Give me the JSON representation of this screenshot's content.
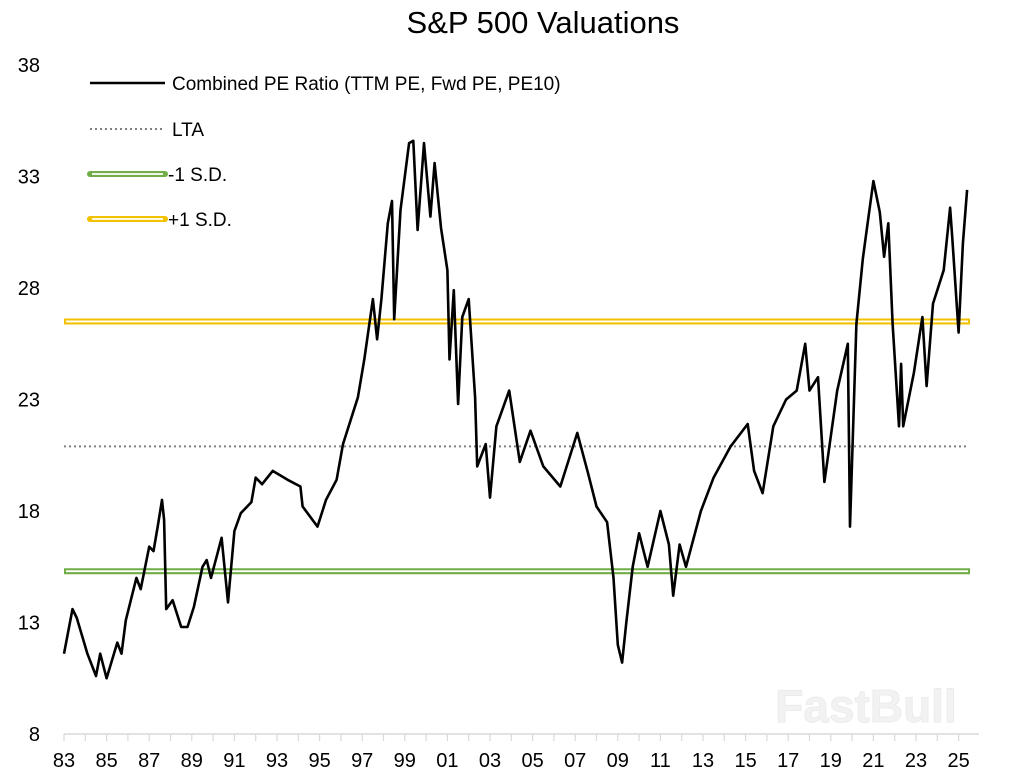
{
  "chart_data": {
    "type": "line",
    "title": "S&P 500 Valuations",
    "xlabel": "",
    "ylabel": "",
    "ylim": [
      8,
      38
    ],
    "xlim": [
      1983,
      2025.9
    ],
    "yticks": [
      "38",
      "33",
      "28",
      "23",
      "18",
      "13",
      "8"
    ],
    "xticks": [
      "83",
      "85",
      "87",
      "89",
      "91",
      "93",
      "95",
      "97",
      "99",
      "01",
      "03",
      "05",
      "07",
      "09",
      "11",
      "13",
      "15",
      "17",
      "19",
      "21",
      "23",
      "25"
    ],
    "grid": false,
    "legend_position": "top-left",
    "legend": [
      {
        "label": "Combined PE Ratio (TTM PE, Fwd PE, PE10)",
        "style": "solid",
        "color": "#000000"
      },
      {
        "label": "LTA",
        "style": "dotted",
        "color": "#808080"
      },
      {
        "label": "-1 S.D.",
        "style": "double",
        "color": "#70ad47"
      },
      {
        "label": "+1 S.D.",
        "style": "double",
        "color": "#f2c200"
      }
    ],
    "reference_lines": {
      "LTA": 20.9,
      "minus_1_sd": 15.3,
      "plus_1_sd": 26.5
    },
    "series": [
      {
        "name": "Combined PE Ratio (TTM PE, Fwd PE, PE10)",
        "points": [
          [
            1983.0,
            11.6
          ],
          [
            1983.4,
            13.6
          ],
          [
            1983.6,
            13.2
          ],
          [
            1984.1,
            11.6
          ],
          [
            1984.5,
            10.6
          ],
          [
            1984.7,
            11.6
          ],
          [
            1985.0,
            10.5
          ],
          [
            1985.5,
            12.1
          ],
          [
            1985.7,
            11.6
          ],
          [
            1985.9,
            13.1
          ],
          [
            1986.4,
            15.0
          ],
          [
            1986.6,
            14.5
          ],
          [
            1987.0,
            16.4
          ],
          [
            1987.2,
            16.2
          ],
          [
            1987.4,
            17.3
          ],
          [
            1987.6,
            18.5
          ],
          [
            1987.7,
            17.6
          ],
          [
            1987.8,
            13.6
          ],
          [
            1988.1,
            14.0
          ],
          [
            1988.5,
            12.8
          ],
          [
            1988.8,
            12.8
          ],
          [
            1989.1,
            13.7
          ],
          [
            1989.5,
            15.5
          ],
          [
            1989.7,
            15.8
          ],
          [
            1989.9,
            15.0
          ],
          [
            1990.4,
            16.8
          ],
          [
            1990.7,
            13.9
          ],
          [
            1991.0,
            17.1
          ],
          [
            1991.3,
            17.9
          ],
          [
            1991.8,
            18.4
          ],
          [
            1992.0,
            19.5
          ],
          [
            1992.3,
            19.2
          ],
          [
            1992.8,
            19.8
          ],
          [
            1993.5,
            19.4
          ],
          [
            1994.1,
            19.1
          ],
          [
            1994.2,
            18.2
          ],
          [
            1994.9,
            17.3
          ],
          [
            1995.3,
            18.5
          ],
          [
            1995.8,
            19.4
          ],
          [
            1996.1,
            21.0
          ],
          [
            1996.8,
            23.1
          ],
          [
            1997.1,
            24.8
          ],
          [
            1997.5,
            27.5
          ],
          [
            1997.7,
            25.7
          ],
          [
            1997.9,
            27.5
          ],
          [
            1998.2,
            30.9
          ],
          [
            1998.4,
            31.9
          ],
          [
            1998.5,
            26.6
          ],
          [
            1998.8,
            31.5
          ],
          [
            1999.2,
            34.5
          ],
          [
            1999.4,
            34.6
          ],
          [
            1999.6,
            30.6
          ],
          [
            1999.9,
            34.5
          ],
          [
            2000.2,
            31.2
          ],
          [
            2000.4,
            33.6
          ],
          [
            2000.7,
            30.7
          ],
          [
            2001.0,
            28.8
          ],
          [
            2001.1,
            24.8
          ],
          [
            2001.3,
            27.9
          ],
          [
            2001.5,
            22.8
          ],
          [
            2001.7,
            26.7
          ],
          [
            2002.0,
            27.5
          ],
          [
            2002.3,
            23.1
          ],
          [
            2002.4,
            20.0
          ],
          [
            2002.8,
            21.0
          ],
          [
            2003.0,
            18.6
          ],
          [
            2003.3,
            21.8
          ],
          [
            2003.9,
            23.4
          ],
          [
            2004.4,
            20.2
          ],
          [
            2004.9,
            21.6
          ],
          [
            2005.5,
            20.0
          ],
          [
            2006.3,
            19.1
          ],
          [
            2007.1,
            21.5
          ],
          [
            2007.6,
            19.7
          ],
          [
            2008.0,
            18.2
          ],
          [
            2008.5,
            17.5
          ],
          [
            2008.8,
            15.0
          ],
          [
            2009.0,
            12.0
          ],
          [
            2009.2,
            11.2
          ],
          [
            2009.4,
            13.0
          ],
          [
            2009.7,
            15.5
          ],
          [
            2010.0,
            17.0
          ],
          [
            2010.4,
            15.5
          ],
          [
            2011.0,
            18.0
          ],
          [
            2011.4,
            16.5
          ],
          [
            2011.6,
            14.2
          ],
          [
            2011.9,
            16.5
          ],
          [
            2012.2,
            15.5
          ],
          [
            2012.9,
            18.0
          ],
          [
            2013.5,
            19.5
          ],
          [
            2014.3,
            20.9
          ],
          [
            2015.1,
            21.9
          ],
          [
            2015.4,
            19.8
          ],
          [
            2015.8,
            18.8
          ],
          [
            2016.3,
            21.8
          ],
          [
            2016.9,
            23.0
          ],
          [
            2017.4,
            23.4
          ],
          [
            2017.8,
            25.5
          ],
          [
            2018.0,
            23.4
          ],
          [
            2018.4,
            24.0
          ],
          [
            2018.7,
            19.3
          ],
          [
            2019.3,
            23.4
          ],
          [
            2019.8,
            25.5
          ],
          [
            2019.9,
            17.3
          ],
          [
            2020.2,
            26.4
          ],
          [
            2020.5,
            29.3
          ],
          [
            2020.7,
            30.7
          ],
          [
            2021.0,
            32.8
          ],
          [
            2021.3,
            31.4
          ],
          [
            2021.5,
            29.4
          ],
          [
            2021.7,
            30.9
          ],
          [
            2021.9,
            26.4
          ],
          [
            2022.2,
            21.8
          ],
          [
            2022.3,
            24.6
          ],
          [
            2022.4,
            21.8
          ],
          [
            2022.9,
            24.2
          ],
          [
            2023.3,
            26.7
          ],
          [
            2023.5,
            23.6
          ],
          [
            2023.8,
            27.3
          ],
          [
            2024.3,
            28.8
          ],
          [
            2024.6,
            31.6
          ],
          [
            2024.7,
            30.3
          ],
          [
            2025.0,
            26.0
          ],
          [
            2025.2,
            30.0
          ],
          [
            2025.4,
            32.4
          ]
        ]
      }
    ]
  },
  "watermark": "FastBull"
}
